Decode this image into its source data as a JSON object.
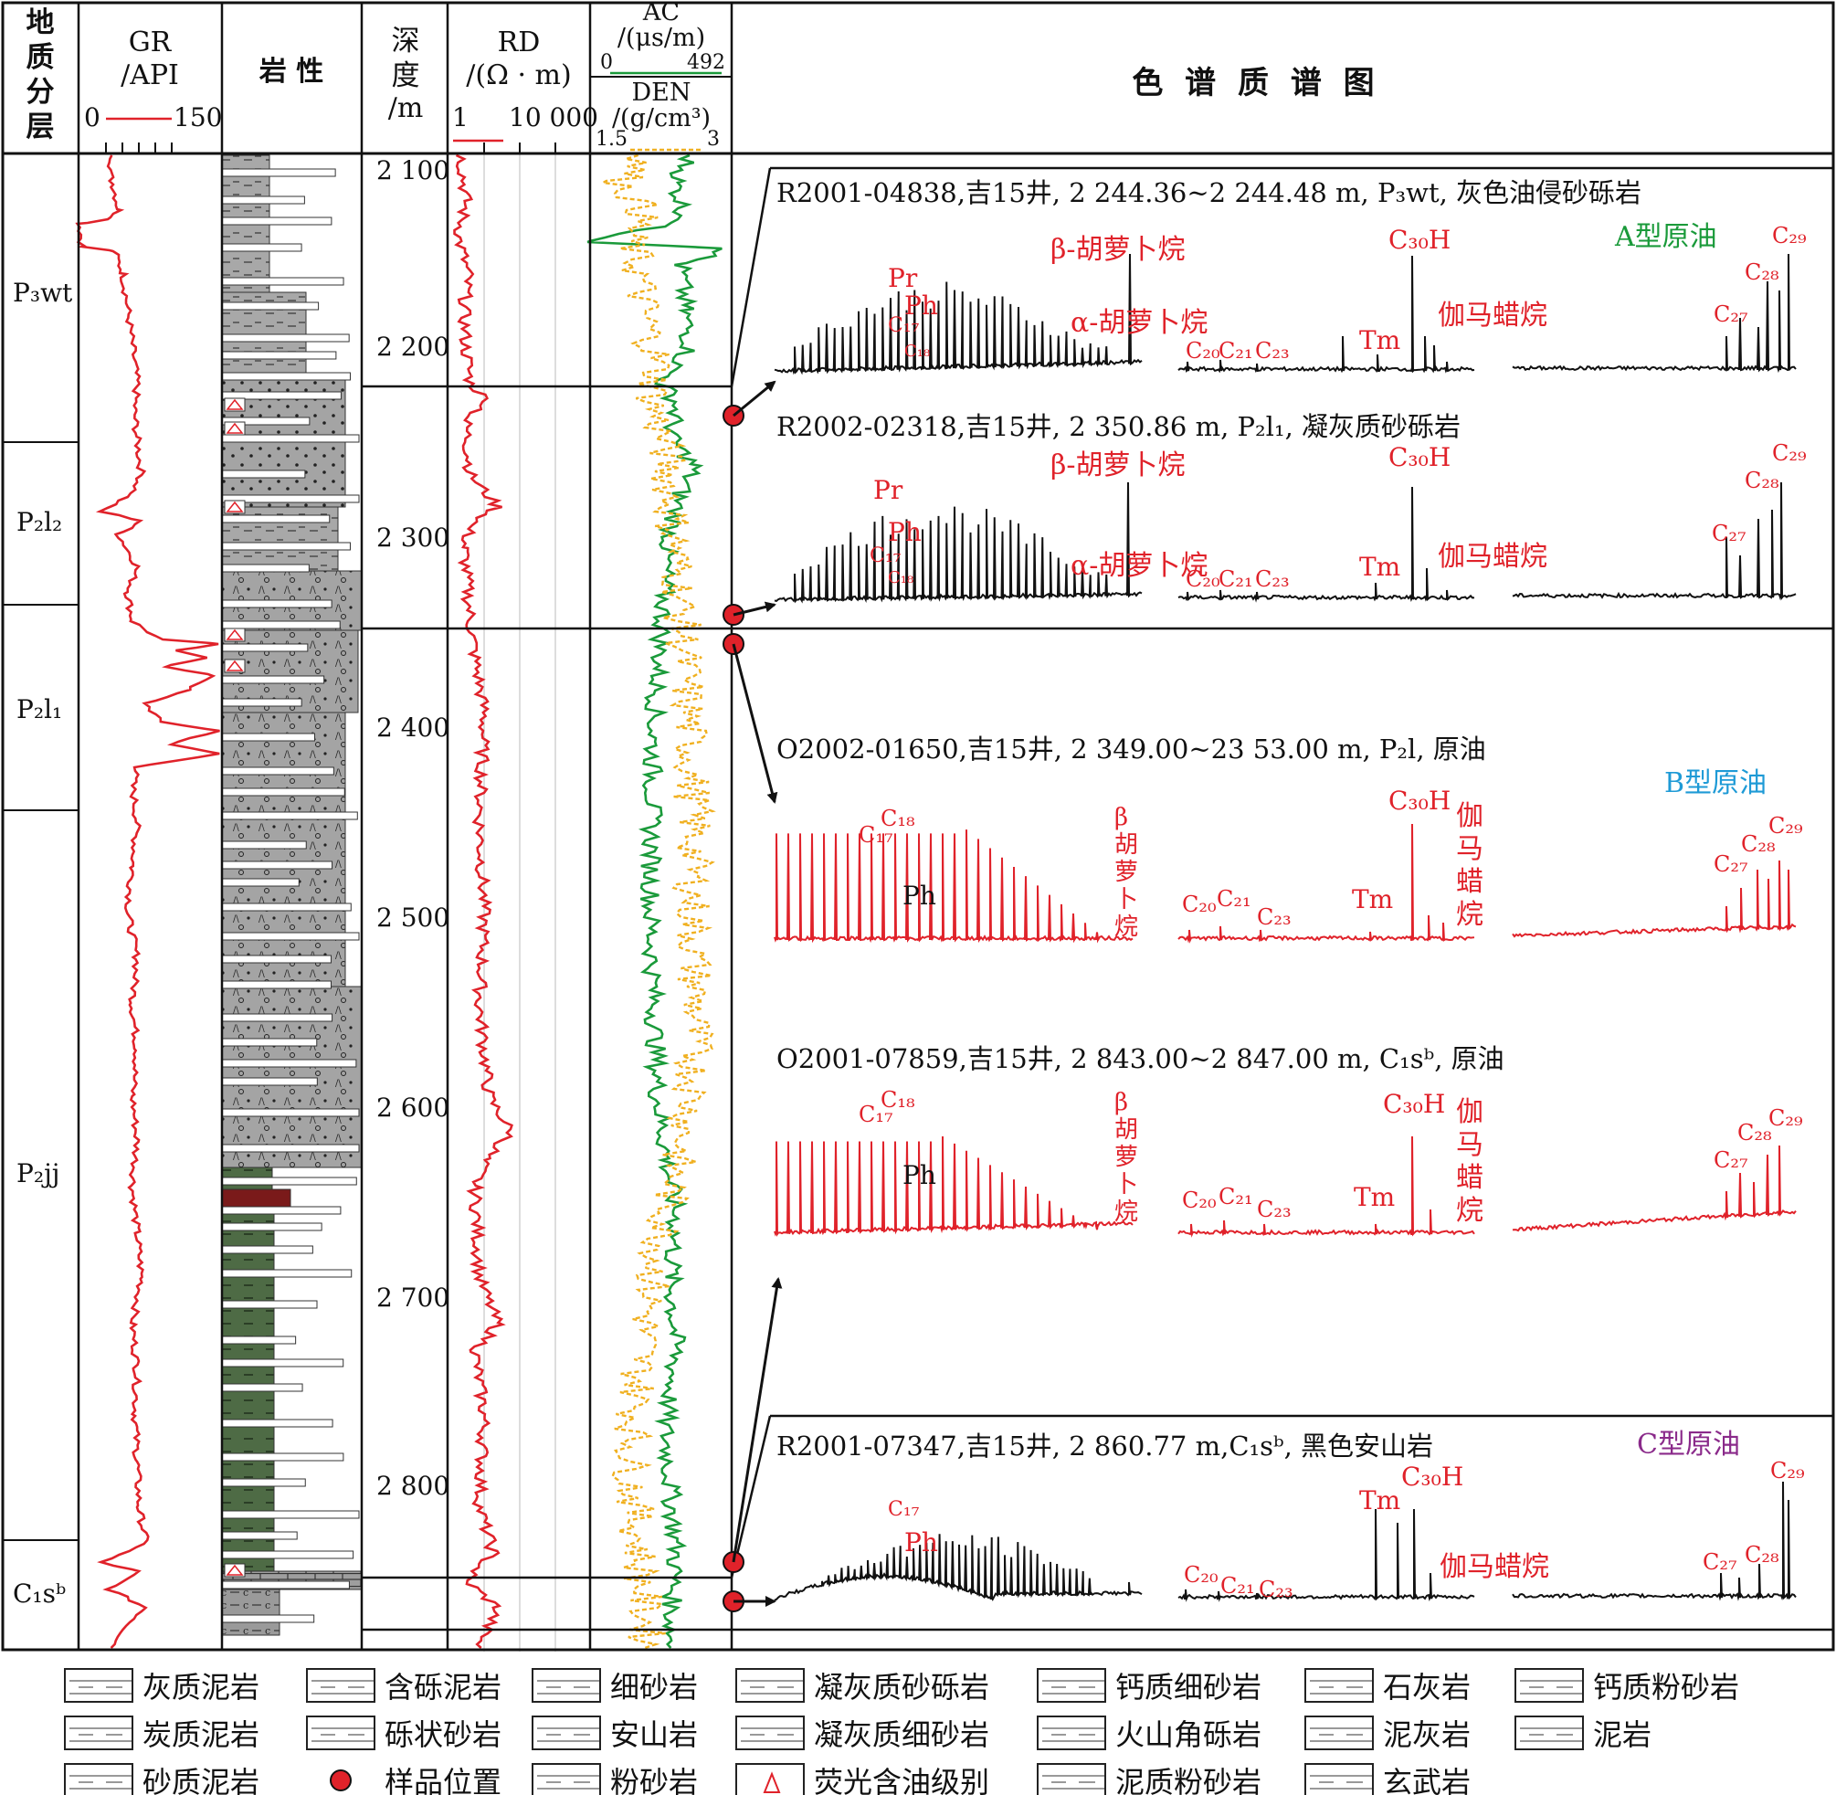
{
  "headers": {
    "strat": "地质分层",
    "gr_title": "GR",
    "gr_unit": "/API",
    "gr_min": "0",
    "gr_max": "150",
    "lith": "岩 性",
    "depth_title": "深度",
    "depth_unit": "/m",
    "rd_title": "RD",
    "rd_unit": "/(Ω · m)",
    "rd_min": "1",
    "rd_max": "10 000",
    "ac_title": "AC",
    "ac_unit": "/(μs/m)",
    "ac_min": "0",
    "ac_max": "492",
    "den_title": "DEN",
    "den_unit": "/(g/cm³)",
    "den_min": "1.5",
    "den_max": "3",
    "spectra": "色 谱 质 谱 图"
  },
  "formations": [
    "P₃wt",
    "P₂l₂",
    "P₂l₁",
    "P₂jj",
    "C₁sᵇ"
  ],
  "depth_ticks": [
    "2 100",
    "2 200",
    "2 300",
    "2 400",
    "2 500",
    "2 600",
    "2 700",
    "2 800"
  ],
  "samples": [
    {
      "label": "R2001-04838,吉15井, 2 244.36~2 244.48 m, P₃wt, 灰色油侵砂砾岩",
      "type": "A型原油"
    },
    {
      "label": "R2002-02318,吉15井, 2 350.86 m, P₂l₁, 凝灰质砂砾岩",
      "type": ""
    },
    {
      "label": "O2002-01650,吉15井, 2 349.00~23 53.00 m, P₂l, 原油",
      "type": "B型原油"
    },
    {
      "label": "O2001-07859,吉15井, 2 843.00~2 847.00 m, C₁sᵇ, 原油",
      "type": ""
    },
    {
      "label": "R2001-07347,吉15井, 2 860.77 m,C₁sᵇ, 黑色安山岩",
      "type": "C型原油"
    }
  ],
  "peaks": {
    "beta": "β-胡萝卜烷",
    "alpha": "α-胡萝卜烷",
    "pr": "Pr",
    "ph": "Ph",
    "c17": "C₁₇",
    "c18": "C₁₈",
    "c20": "C₂₀",
    "c21": "C₂₁",
    "c23": "C₂₃",
    "c30h": "C₃₀H",
    "tm": "Tm",
    "gamma": "伽马蜡烷",
    "c27": "C₂₇",
    "c28": "C₂₈",
    "c29": "C₂₉",
    "beta_v": "β胡萝卜烷",
    "gamma_v": "伽马蜡烷"
  },
  "legend": [
    {
      "label": "灰质泥岩",
      "pattern": "gray-mud"
    },
    {
      "label": "含砾泥岩",
      "pattern": "gravel-mud"
    },
    {
      "label": "细砂岩",
      "pattern": "fine-sand"
    },
    {
      "label": "凝灰质砂砾岩",
      "pattern": "tuff-conglomerate"
    },
    {
      "label": "钙质细砂岩",
      "pattern": "calc-fine-sand"
    },
    {
      "label": "石灰岩",
      "pattern": "limestone"
    },
    {
      "label": "钙质粉砂岩",
      "pattern": "calc-silt"
    },
    {
      "label": "炭质泥岩",
      "pattern": "carb-mud"
    },
    {
      "label": "砾状砂岩",
      "pattern": "gravelly-sand"
    },
    {
      "label": "安山岩",
      "pattern": "andesite"
    },
    {
      "label": "凝灰质细砂岩",
      "pattern": "tuff-fine-sand"
    },
    {
      "label": "火山角砾岩",
      "pattern": "volcanic-breccia"
    },
    {
      "label": "泥灰岩",
      "pattern": "marl"
    },
    {
      "label": "泥岩",
      "pattern": "mudstone"
    },
    {
      "label": "砂质泥岩",
      "pattern": "sandy-mud"
    },
    {
      "label": "样品位置",
      "pattern": "sample-dot"
    },
    {
      "label": "粉砂岩",
      "pattern": "siltstone"
    },
    {
      "label": "荧光含油级别",
      "pattern": "triangle"
    },
    {
      "label": "泥质粉砂岩",
      "pattern": "mud-silt"
    },
    {
      "label": "玄武岩",
      "pattern": "basalt"
    }
  ],
  "colors": {
    "curve_red": "#e0222a",
    "ac_green": "#1a9a3a",
    "den_orange": "#f0b020",
    "lith_gray": "#9c9c9c",
    "lith_green": "#4e6b45",
    "lith_darkred": "#7a1a1a",
    "type_a": "#1a9a3a",
    "type_b": "#1e9ad6",
    "type_c": "#8a2a8a"
  }
}
